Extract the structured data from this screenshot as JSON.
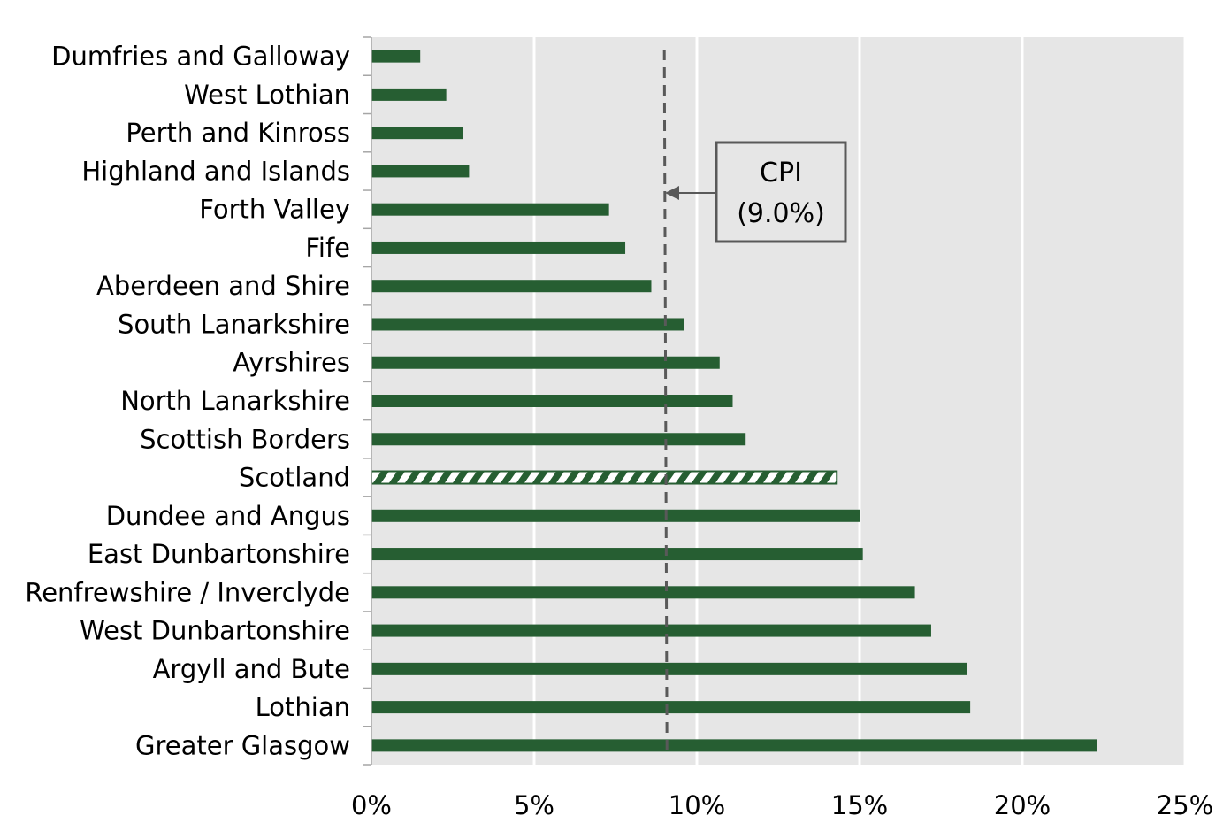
{
  "chart_data": {
    "type": "bar",
    "orientation": "horizontal",
    "categories": [
      "Dumfries and Galloway",
      "West Lothian",
      "Perth and Kinross",
      "Highland and Islands",
      "Forth Valley",
      "Fife",
      "Aberdeen and Shire",
      "South Lanarkshire",
      "Ayrshires",
      "North Lanarkshire",
      "Scottish Borders",
      "Scotland",
      "Dundee and Angus",
      "East Dunbartonshire",
      "Renfrewshire / Inverclyde",
      "West Dunbartonshire",
      "Argyll and Bute",
      "Lothian",
      "Greater Glasgow"
    ],
    "values": [
      1.5,
      2.3,
      2.8,
      3.0,
      7.3,
      7.8,
      8.6,
      9.6,
      10.7,
      11.1,
      11.5,
      14.3,
      15.0,
      15.1,
      16.7,
      17.2,
      18.3,
      18.4,
      22.3
    ],
    "highlighted_category": "Scotland",
    "xlim": [
      0,
      25
    ],
    "xticks": [
      "0%",
      "5%",
      "10%",
      "15%",
      "20%",
      "25%"
    ],
    "xtick_values": [
      0,
      5,
      10,
      15,
      20,
      25
    ],
    "grid": true,
    "reference_line": {
      "value": 9.0,
      "style": "dashed",
      "label_line1": "CPI",
      "label_line2": "(9.0%)"
    },
    "colors": {
      "bar": "#265e32",
      "plot_background": "#e6e6e6",
      "gridline": "#ffffff",
      "reference": "#595959"
    }
  }
}
